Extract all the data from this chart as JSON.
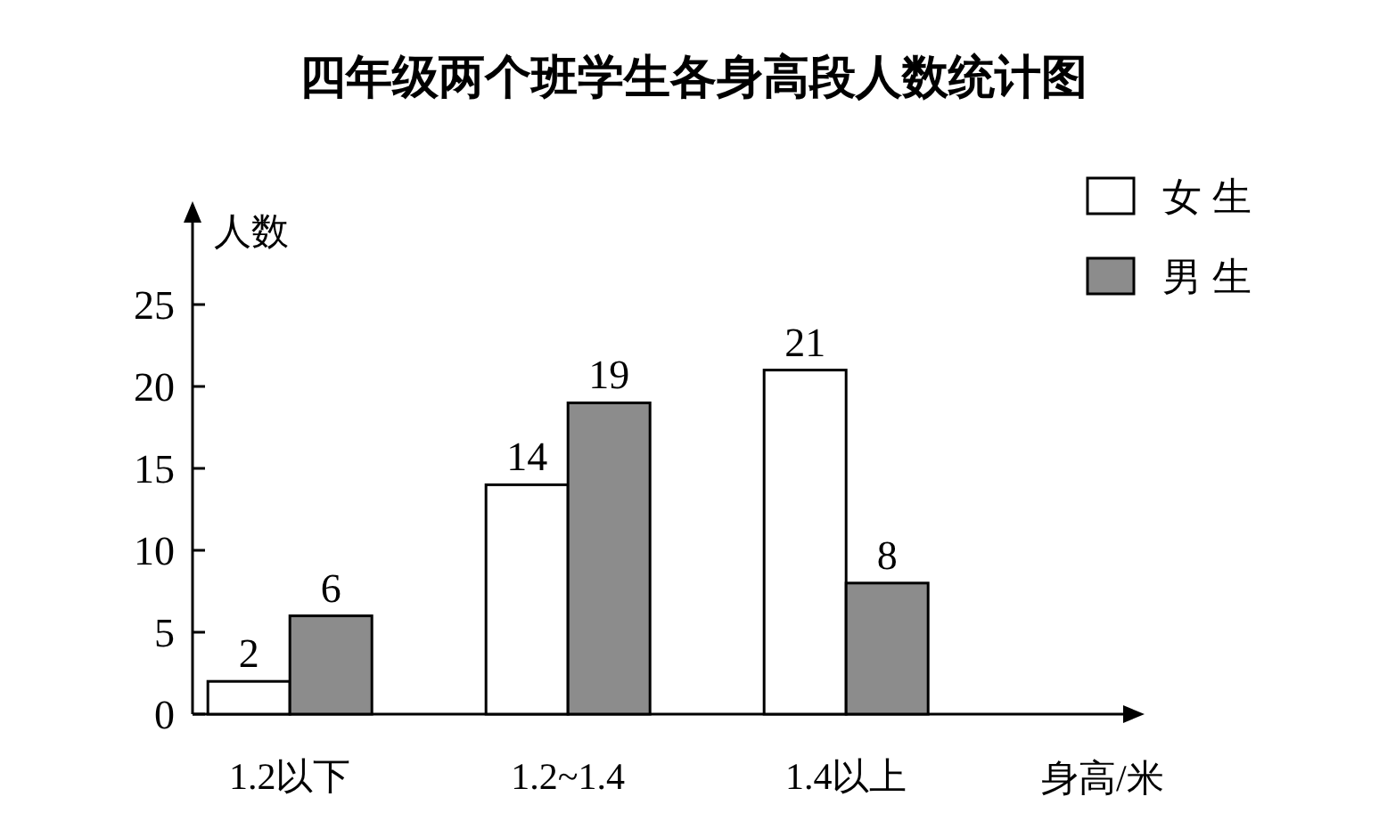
{
  "chart_data": {
    "type": "bar",
    "title": "四年级两个班学生各身高段人数统计图",
    "xlabel": "身高/米",
    "ylabel": "人数",
    "categories": [
      "1.2以下",
      "1.2~1.4",
      "1.4以上"
    ],
    "series": [
      {
        "name": "女生",
        "color": "#ffffff",
        "values": [
          2,
          14,
          21
        ]
      },
      {
        "name": "男生",
        "color": "#8c8c8c",
        "values": [
          6,
          19,
          8
        ]
      }
    ],
    "ylim": [
      0,
      30
    ],
    "yticks": [
      0,
      5,
      10,
      15,
      20,
      25
    ],
    "grid": false,
    "legend": "top right",
    "data_labels": true
  }
}
